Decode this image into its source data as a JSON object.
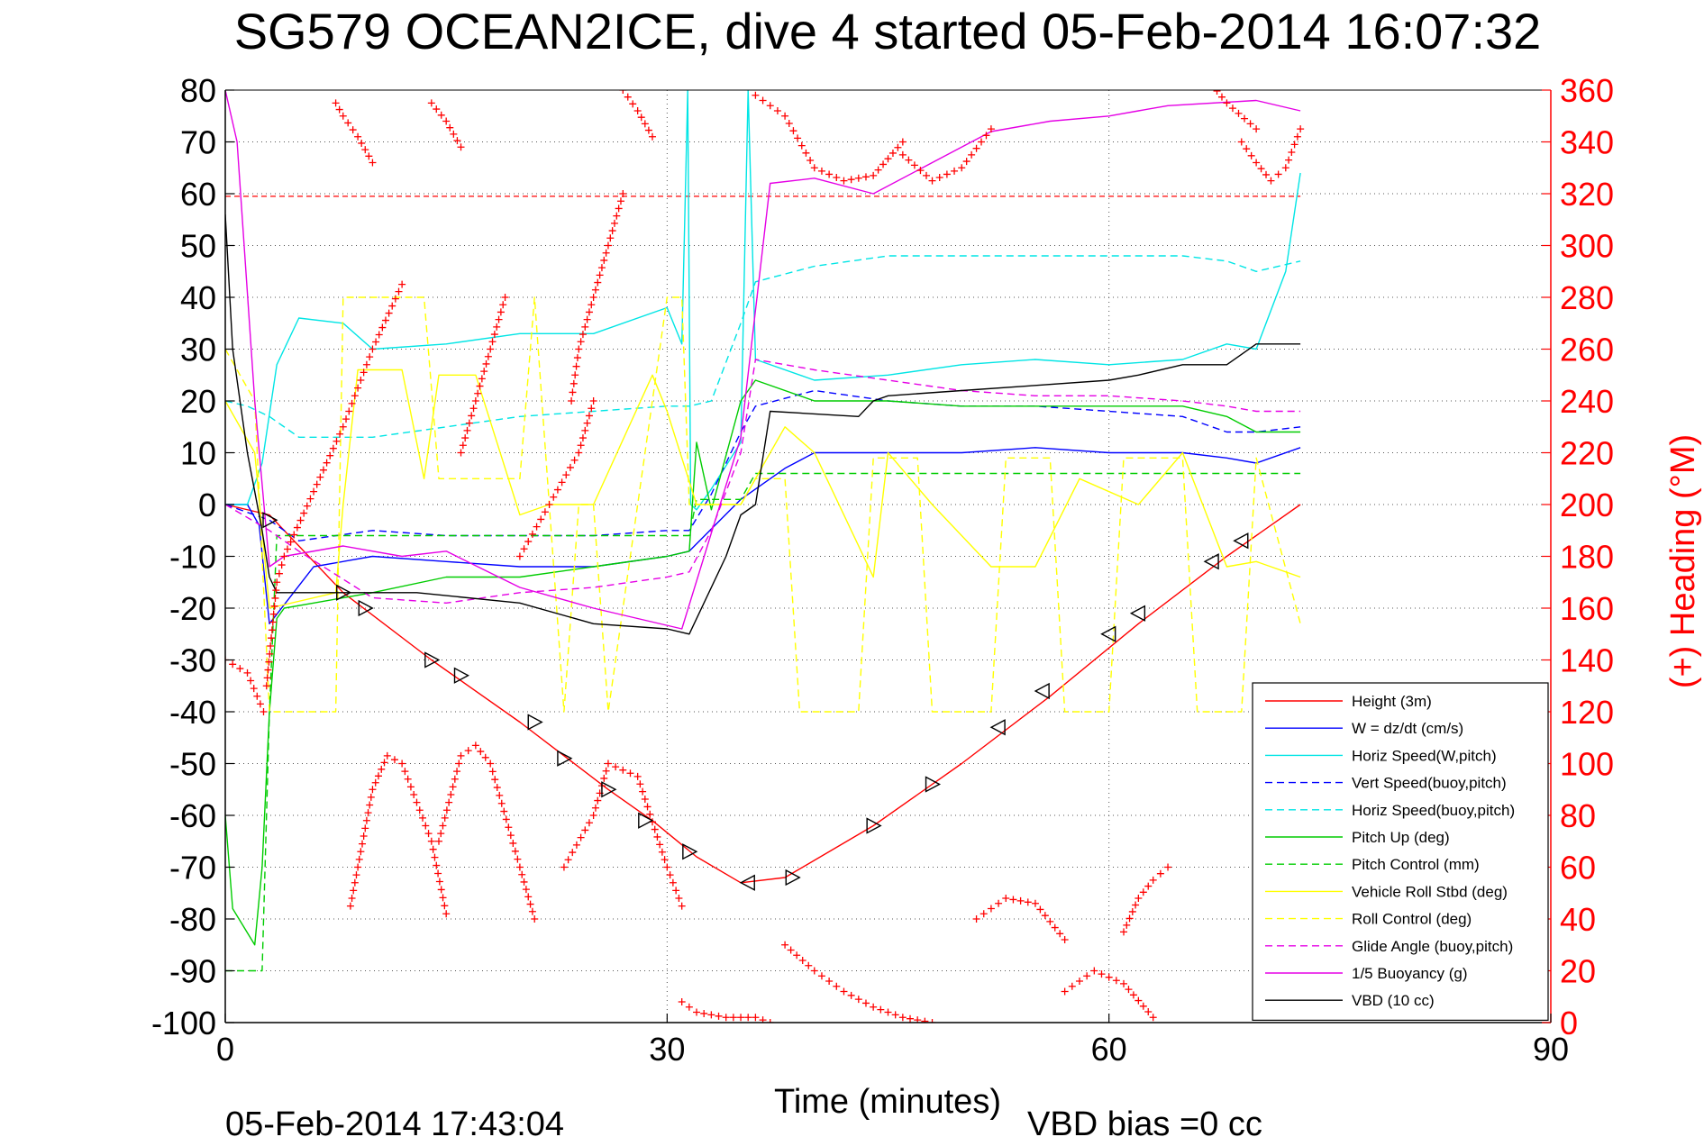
{
  "chart_data": {
    "type": "line",
    "title": "SG579 OCEAN2ICE, dive 4 started 05-Feb-2014 16:07:32",
    "xlabel": "Time (minutes)",
    "ylabel_right": "(+) Heading (°M)",
    "footer_left": "05-Feb-2014 17:43:04",
    "footer_right": "VBD bias =0 cc",
    "xlim": [
      0,
      90
    ],
    "ylim": [
      -100,
      80
    ],
    "ylim_right": [
      0,
      360
    ],
    "x_ticks": [
      0,
      30,
      60,
      90
    ],
    "y_ticks": [
      -100,
      -90,
      -80,
      -70,
      -60,
      -50,
      -40,
      -30,
      -20,
      -10,
      0,
      10,
      20,
      30,
      40,
      50,
      60,
      70,
      80
    ],
    "y_ticks_right": [
      0,
      20,
      40,
      60,
      80,
      100,
      120,
      140,
      160,
      180,
      200,
      220,
      240,
      260,
      280,
      300,
      320,
      340,
      360
    ],
    "grid": true,
    "legend_position": "bottom-right",
    "colors": {
      "axis_right": "#ff0000",
      "reference_line": "#ff0000"
    },
    "reference_line_y": 59.5,
    "series": [
      {
        "name": "Height (3m)",
        "color": "#ff0000",
        "dash": false,
        "x": [
          0,
          3,
          8,
          14,
          20,
          26,
          29,
          32,
          35,
          38,
          44,
          50,
          56,
          62,
          68,
          73
        ],
        "y": [
          0,
          -2,
          -17,
          -30,
          -42,
          -55,
          -61,
          -68,
          -73,
          -72,
          -62,
          -50,
          -37,
          -23,
          -10,
          0
        ]
      },
      {
        "name": "W = dz/dt (cm/s)",
        "color": "#0000ff",
        "dash": false,
        "x": [
          0,
          1.5,
          2.3,
          3,
          6,
          10,
          15,
          20,
          25,
          30,
          31.5,
          35,
          38,
          40,
          45,
          50,
          55,
          60,
          65,
          68,
          70,
          73
        ],
        "y": [
          0,
          0,
          -4,
          -23,
          -12,
          -10,
          -11,
          -12,
          -12,
          -10,
          -9,
          1,
          7,
          10,
          10,
          10,
          11,
          10,
          10,
          9,
          8,
          11
        ]
      },
      {
        "name": "Horiz Speed(W,pitch)",
        "color": "#00e5e5",
        "dash": false,
        "x": [
          0,
          1.5,
          2.5,
          3.5,
          5,
          8,
          10,
          15,
          20,
          25,
          30,
          31,
          31.4,
          31.6,
          32,
          33,
          35,
          35.5,
          36,
          40,
          45,
          50,
          55,
          60,
          65,
          68,
          70,
          72,
          73
        ],
        "y": [
          0,
          0,
          8,
          27,
          36,
          35,
          30,
          31,
          33,
          33,
          38,
          31,
          80,
          0,
          -1,
          3,
          12,
          80,
          28,
          24,
          25,
          27,
          28,
          27,
          28,
          31,
          30,
          45,
          64
        ]
      },
      {
        "name": "Vert Speed(buoy,pitch)",
        "color": "#0000ff",
        "dash": true,
        "x": [
          0,
          3,
          5,
          10,
          15,
          20,
          25,
          30,
          31.5,
          33,
          35,
          36,
          40,
          45,
          50,
          55,
          60,
          65,
          68,
          70,
          73
        ],
        "y": [
          0,
          -3,
          -7,
          -5,
          -6,
          -6,
          -6,
          -5,
          -5,
          2,
          14,
          19,
          22,
          20,
          19,
          19,
          18,
          17,
          14,
          14,
          15
        ]
      },
      {
        "name": "Horiz Speed(buoy,pitch)",
        "color": "#00e5e5",
        "dash": true,
        "x": [
          0,
          1.5,
          3,
          5,
          10,
          15,
          20,
          25,
          30,
          31.5,
          33,
          35,
          36,
          40,
          45,
          50,
          55,
          60,
          65,
          68,
          70,
          73
        ],
        "y": [
          20,
          19,
          17,
          13,
          13,
          15,
          17,
          18,
          19,
          19,
          20,
          35,
          43,
          46,
          48,
          48,
          48,
          48,
          48,
          47,
          45,
          47
        ]
      },
      {
        "name": "Pitch Up (deg)",
        "color": "#00cc00",
        "dash": false,
        "x": [
          0,
          0.5,
          2,
          2.5,
          3,
          3.5,
          4,
          6,
          10,
          15,
          20,
          25,
          30,
          31.5,
          32,
          33,
          35,
          36,
          40,
          45,
          50,
          55,
          60,
          65,
          68,
          70,
          73
        ],
        "y": [
          -60,
          -78,
          -85,
          -70,
          -40,
          -22,
          -20,
          -19,
          -17,
          -14,
          -14,
          -12,
          -10,
          -9,
          12,
          -1,
          20,
          24,
          20,
          20,
          19,
          19,
          19,
          19,
          17,
          14,
          14
        ]
      },
      {
        "name": "Pitch Control (mm)",
        "color": "#00cc00",
        "dash": true,
        "x": [
          0,
          2.5,
          3,
          3.5,
          10,
          20,
          30,
          31.5,
          32,
          35,
          36,
          40,
          50,
          60,
          70,
          73
        ],
        "y": [
          -90,
          -90,
          -40,
          -6,
          -6,
          -6,
          -6,
          -6,
          1,
          1,
          6,
          6,
          6,
          6,
          6,
          6
        ]
      },
      {
        "name": "Vehicle Roll Stbd (deg)",
        "color": "#ffff00",
        "dash": false,
        "x": [
          0,
          2,
          3,
          7.5,
          8,
          9,
          12,
          13.5,
          14.5,
          17,
          20,
          22,
          25,
          29,
          30,
          32,
          35,
          36,
          38,
          40,
          44,
          45,
          48,
          52,
          55,
          58,
          62,
          65,
          68,
          70,
          73
        ],
        "y": [
          20,
          10,
          -20,
          -17,
          0,
          26,
          26,
          5,
          25,
          25,
          -2,
          0,
          0,
          25,
          18,
          0,
          0,
          5,
          15,
          10,
          -14,
          10,
          0,
          -12,
          -12,
          5,
          0,
          10,
          -12,
          -11,
          -14
        ]
      },
      {
        "name": "Roll Control (deg)",
        "color": "#ffff00",
        "dash": true,
        "x": [
          0,
          2,
          3,
          7.5,
          8,
          13.5,
          14.5,
          20,
          21,
          23,
          24,
          25,
          26,
          30,
          31,
          31.5,
          35,
          36,
          38,
          39,
          43,
          44,
          47,
          48,
          52,
          53,
          56,
          57,
          60,
          61,
          65,
          66,
          69,
          70,
          73
        ],
        "y": [
          30,
          20,
          -40,
          -40,
          40,
          40,
          5,
          5,
          40,
          -40,
          0,
          0,
          -40,
          40,
          40,
          0,
          0,
          5,
          5,
          -40,
          -40,
          9,
          9,
          -40,
          -40,
          9,
          9,
          -40,
          -40,
          9,
          9,
          -40,
          -40,
          9,
          -23
        ]
      },
      {
        "name": "Glide Angle (buoy,pitch)",
        "color": "#e500e5",
        "dash": true,
        "x": [
          0,
          3,
          5,
          10,
          15,
          20,
          25,
          30,
          31.5,
          33,
          35,
          36,
          40,
          45,
          50,
          55,
          60,
          65,
          68,
          70,
          73
        ],
        "y": [
          0,
          -5,
          -9,
          -18,
          -19,
          -17,
          -16,
          -14,
          -13,
          -5,
          10,
          28,
          26,
          24,
          22,
          21,
          21,
          20,
          19,
          18,
          18
        ]
      },
      {
        "name": "1/5 Buoyancy (g)",
        "color": "#e500e5",
        "dash": false,
        "x": [
          0,
          0.8,
          2,
          3,
          4,
          8,
          12,
          15,
          20,
          25,
          28,
          31,
          35,
          37,
          40,
          44,
          48,
          52,
          56,
          60,
          62,
          64,
          70,
          73
        ],
        "y": [
          80,
          70,
          20,
          -12,
          -10,
          -8,
          -10,
          -9,
          -16,
          -20,
          -22,
          -24,
          13,
          62,
          63,
          60,
          66,
          72,
          74,
          75,
          76,
          77,
          78,
          76
        ]
      },
      {
        "name": "VBD (10 cc)",
        "color": "#000000",
        "dash": false,
        "x": [
          0,
          0.5,
          1.5,
          2.5,
          3,
          3.5,
          7.5,
          13,
          20,
          25,
          30,
          31.5,
          34,
          35,
          36,
          37,
          43,
          44,
          45,
          50,
          55,
          60,
          62,
          65,
          68,
          69,
          70,
          73
        ],
        "y": [
          56,
          30,
          10,
          -5,
          -14,
          -17,
          -17,
          -17,
          -19,
          -23,
          -24,
          -25,
          -10,
          -2,
          0,
          18,
          17,
          20,
          21,
          22,
          23,
          24,
          25,
          27,
          27,
          29,
          31,
          31
        ]
      }
    ],
    "heading_segments": [
      {
        "x": [
          0,
          1.5,
          2.6
        ],
        "y": [
          140,
          135,
          120
        ]
      },
      {
        "x": [
          2.8,
          3.5,
          4,
          6,
          8,
          10,
          12
        ],
        "y": [
          130,
          170,
          180,
          205,
          230,
          260,
          285
        ]
      },
      {
        "x": [
          16,
          17,
          18,
          19
        ],
        "y": [
          220,
          240,
          260,
          280
        ]
      },
      {
        "x": [
          20,
          22,
          24,
          25
        ],
        "y": [
          180,
          200,
          220,
          240
        ]
      },
      {
        "x": [
          23.5,
          24,
          25,
          26,
          27
        ],
        "y": [
          240,
          260,
          280,
          300,
          320
        ]
      },
      {
        "x": [
          7.5,
          8,
          9,
          10
        ],
        "y": [
          355,
          350,
          342,
          332
        ]
      },
      {
        "x": [
          14,
          15,
          16
        ],
        "y": [
          355,
          348,
          338
        ]
      },
      {
        "x": [
          26,
          27,
          28,
          29
        ],
        "y": [
          366,
          360,
          352,
          342
        ]
      },
      {
        "x": [
          8.5,
          10,
          11,
          12,
          14,
          15
        ],
        "y": [
          45,
          90,
          103,
          100,
          70,
          42
        ]
      },
      {
        "x": [
          14.5,
          16,
          17,
          18,
          20,
          21
        ],
        "y": [
          70,
          103,
          107,
          100,
          60,
          40
        ]
      },
      {
        "x": [
          23,
          25,
          26,
          28,
          30,
          31
        ],
        "y": [
          60,
          80,
          100,
          95,
          60,
          45
        ]
      },
      {
        "x": [
          31,
          32,
          34,
          36,
          37
        ],
        "y": [
          8,
          4,
          2,
          2,
          0
        ]
      },
      {
        "x": [
          38,
          40,
          42,
          44,
          46,
          48
        ],
        "y": [
          30,
          20,
          12,
          6,
          2,
          0
        ]
      },
      {
        "x": [
          51,
          53,
          55,
          57
        ],
        "y": [
          40,
          48,
          46,
          32
        ]
      },
      {
        "x": [
          57,
          59,
          61,
          63
        ],
        "y": [
          12,
          20,
          15,
          2
        ]
      },
      {
        "x": [
          61,
          62,
          63,
          64
        ],
        "y": [
          35,
          48,
          55,
          60
        ]
      },
      {
        "x": [
          36,
          38,
          40,
          42,
          44,
          46
        ],
        "y": [
          358,
          350,
          330,
          325,
          327,
          340
        ]
      },
      {
        "x": [
          46,
          48,
          50,
          52
        ],
        "y": [
          335,
          325,
          330,
          345
        ]
      },
      {
        "x": [
          67,
          68,
          70
        ],
        "y": [
          362,
          355,
          345
        ]
      },
      {
        "x": [
          69,
          70,
          71,
          72,
          73
        ],
        "y": [
          340,
          332,
          325,
          330,
          345
        ]
      }
    ],
    "markers": {
      "x": [
        3,
        8,
        9.5,
        14,
        16,
        21,
        23,
        26,
        28.5,
        31.5,
        35.5,
        38.5,
        44,
        48,
        52.5,
        55.5,
        60,
        62,
        67,
        69
      ],
      "y": [
        -3,
        -17,
        -20,
        -30,
        -33,
        -42,
        -49,
        -55,
        -61,
        -67,
        -73,
        -72,
        -62,
        -54,
        -43,
        -36,
        -25,
        -21,
        -11,
        -7
      ]
    }
  }
}
